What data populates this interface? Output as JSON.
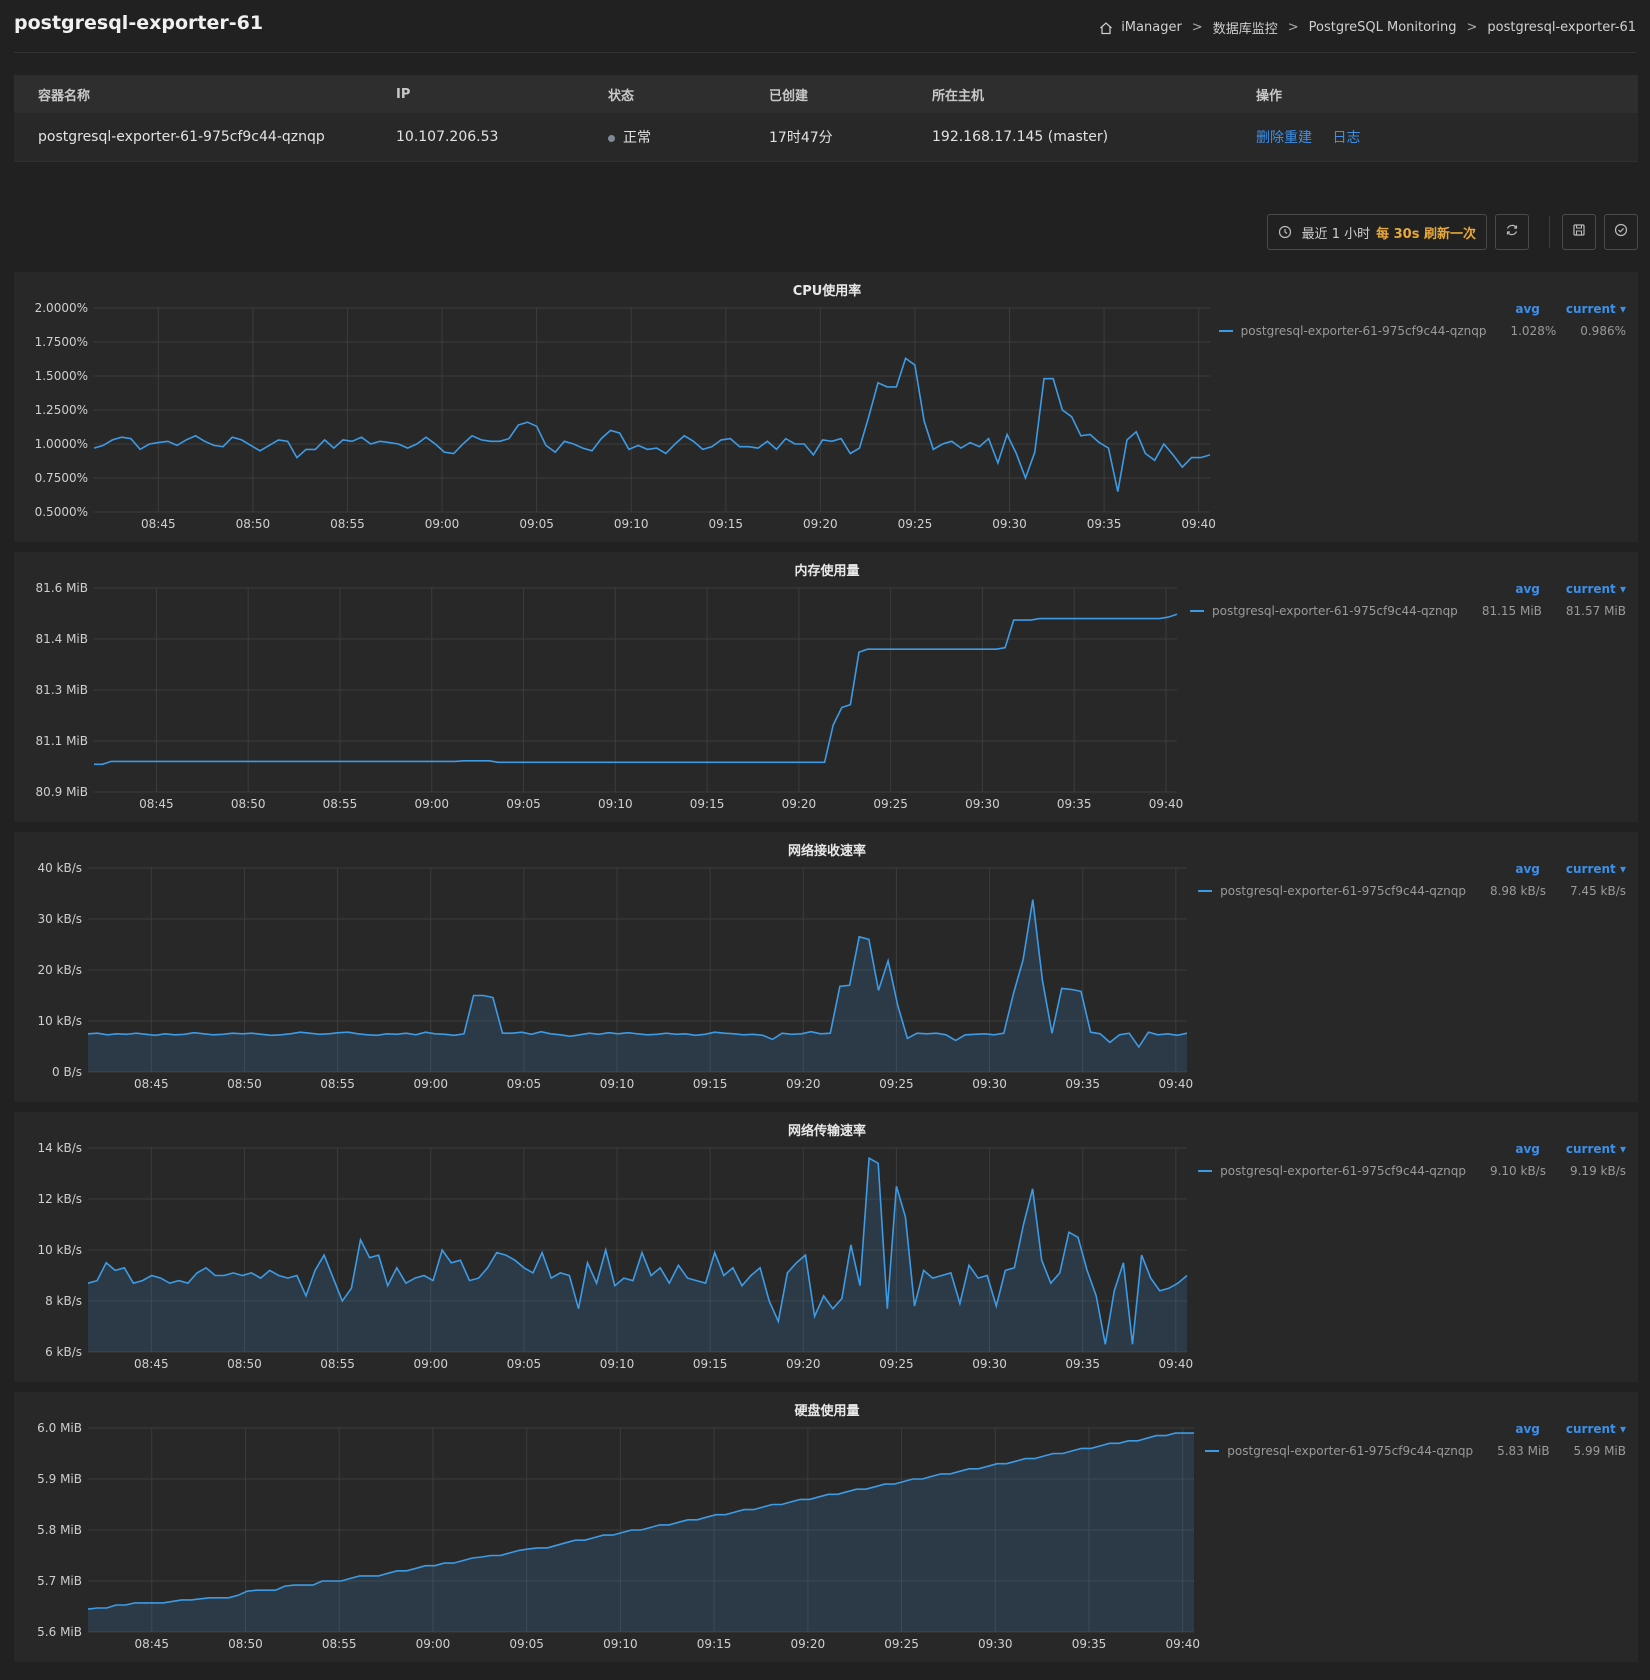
{
  "header": {
    "title": "postgresql-exporter-61",
    "breadcrumb": [
      "iManager",
      "数据库监控",
      "PostgreSQL Monitoring",
      "postgresql-exporter-61"
    ]
  },
  "table": {
    "columns": [
      "容器名称",
      "IP",
      "状态",
      "已创建",
      "所在主机",
      "操作"
    ],
    "row": {
      "name": "postgresql-exporter-61-975cf9c44-qznqp",
      "ip": "10.107.206.53",
      "status": "正常",
      "created": "17时47分",
      "host": "192.168.17.145 (master)",
      "action_rebuild": "删除重建",
      "action_log": "日志"
    }
  },
  "toolbar": {
    "time_range": "最近 1 小时",
    "refresh": "每 30s 刷新一次"
  },
  "colors": {
    "line": "#3d9be6",
    "accent": "#e8a93b",
    "link": "#3d8fe8"
  },
  "legend_headers": {
    "avg": "avg",
    "current": "current ▾"
  },
  "chart_data": [
    {
      "type": "line",
      "title": "CPU使用率",
      "series_name": "postgresql-exporter-61-975cf9c44-qznqp",
      "avg": "1.028%",
      "current": "0.986%",
      "y_ticks": [
        "2.0000%",
        "1.7500%",
        "1.5000%",
        "1.2500%",
        "1.0000%",
        "0.7500%",
        "0.5000%"
      ],
      "ylim": [
        0.5,
        2.0
      ],
      "x_ticks": [
        "08:45",
        "08:50",
        "08:55",
        "09:00",
        "09:05",
        "09:10",
        "09:15",
        "09:20",
        "09:25",
        "09:30",
        "09:35",
        "09:40"
      ],
      "fill": false,
      "values": [
        0.97,
        0.99,
        1.03,
        1.05,
        1.04,
        0.96,
        1.0,
        1.01,
        1.02,
        0.99,
        1.03,
        1.06,
        1.02,
        0.99,
        0.98,
        1.05,
        1.03,
        0.99,
        0.95,
        0.99,
        1.03,
        1.02,
        0.9,
        0.96,
        0.96,
        1.03,
        0.97,
        1.03,
        1.02,
        1.05,
        1.0,
        1.02,
        1.01,
        1.0,
        0.97,
        1.0,
        1.05,
        1.0,
        0.94,
        0.93,
        1.0,
        1.06,
        1.03,
        1.02,
        1.02,
        1.04,
        1.14,
        1.16,
        1.13,
        0.99,
        0.94,
        1.02,
        1.0,
        0.97,
        0.95,
        1.04,
        1.1,
        1.08,
        0.96,
        0.99,
        0.96,
        0.97,
        0.93,
        1.0,
        1.06,
        1.02,
        0.96,
        0.98,
        1.03,
        1.04,
        0.98,
        0.98,
        0.97,
        1.02,
        0.96,
        1.04,
        1.0,
        1.0,
        0.92,
        1.03,
        1.02,
        1.04,
        0.93,
        0.97,
        1.2,
        1.45,
        1.42,
        1.42,
        1.63,
        1.58,
        1.17,
        0.96,
        1.0,
        1.02,
        0.97,
        1.01,
        0.98,
        1.04,
        0.86,
        1.07,
        0.93,
        0.75,
        0.94,
        1.48,
        1.48,
        1.25,
        1.2,
        1.06,
        1.07,
        1.01,
        0.97,
        0.65,
        1.03,
        1.09,
        0.93,
        0.88,
        1.0,
        0.92,
        0.83,
        0.9,
        0.9,
        0.92
      ]
    },
    {
      "type": "line",
      "title": "内存使用量",
      "series_name": "postgresql-exporter-61-975cf9c44-qznqp",
      "avg": "81.15 MiB",
      "current": "81.57 MiB",
      "y_ticks": [
        "81.6 MiB",
        "81.4 MiB",
        "81.3 MiB",
        "81.1 MiB",
        "80.9 MiB"
      ],
      "ylim": [
        80.9,
        81.6
      ],
      "x_ticks": [
        "08:45",
        "08:50",
        "08:55",
        "09:00",
        "09:05",
        "09:10",
        "09:15",
        "09:20",
        "09:25",
        "09:30",
        "09:35",
        "09:40"
      ],
      "fill": false,
      "values": [
        80.995,
        80.995,
        81.005,
        81.005,
        81.005,
        81.005,
        81.005,
        81.005,
        81.005,
        81.005,
        81.005,
        81.005,
        81.005,
        81.005,
        81.005,
        81.005,
        81.005,
        81.005,
        81.005,
        81.005,
        81.005,
        81.005,
        81.005,
        81.005,
        81.005,
        81.005,
        81.005,
        81.005,
        81.005,
        81.005,
        81.005,
        81.005,
        81.005,
        81.005,
        81.005,
        81.005,
        81.005,
        81.005,
        81.005,
        81.005,
        81.005,
        81.005,
        81.005,
        81.007,
        81.007,
        81.007,
        81.007,
        81.002,
        81.002,
        81.002,
        81.002,
        81.002,
        81.002,
        81.002,
        81.002,
        81.002,
        81.002,
        81.002,
        81.002,
        81.002,
        81.002,
        81.002,
        81.002,
        81.002,
        81.002,
        81.002,
        81.002,
        81.002,
        81.002,
        81.002,
        81.002,
        81.002,
        81.002,
        81.002,
        81.002,
        81.002,
        81.002,
        81.002,
        81.002,
        81.002,
        81.002,
        81.002,
        81.002,
        81.002,
        81.002,
        81.002,
        81.13,
        81.19,
        81.2,
        81.38,
        81.39,
        81.39,
        81.39,
        81.39,
        81.39,
        81.39,
        81.39,
        81.39,
        81.39,
        81.39,
        81.39,
        81.39,
        81.39,
        81.39,
        81.39,
        81.39,
        81.395,
        81.49,
        81.49,
        81.49,
        81.495,
        81.495,
        81.495,
        81.495,
        81.495,
        81.495,
        81.495,
        81.495,
        81.495,
        81.495,
        81.495,
        81.495,
        81.495,
        81.495,
        81.495,
        81.5,
        81.51
      ]
    },
    {
      "type": "area",
      "title": "网络接收速率",
      "series_name": "postgresql-exporter-61-975cf9c44-qznqp",
      "avg": "8.98 kB/s",
      "current": "7.45 kB/s",
      "y_ticks": [
        "40 kB/s",
        "30 kB/s",
        "20 kB/s",
        "10 kB/s",
        "0 B/s"
      ],
      "ylim": [
        0,
        40
      ],
      "x_ticks": [
        "08:45",
        "08:50",
        "08:55",
        "09:00",
        "09:05",
        "09:10",
        "09:15",
        "09:20",
        "09:25",
        "09:30",
        "09:35",
        "09:40"
      ],
      "fill": true,
      "values": [
        7.5,
        7.6,
        7.3,
        7.5,
        7.4,
        7.6,
        7.4,
        7.2,
        7.5,
        7.3,
        7.4,
        7.7,
        7.5,
        7.3,
        7.4,
        7.6,
        7.5,
        7.6,
        7.4,
        7.2,
        7.3,
        7.5,
        7.8,
        7.6,
        7.4,
        7.5,
        7.7,
        7.8,
        7.5,
        7.3,
        7.2,
        7.5,
        7.4,
        7.6,
        7.3,
        7.8,
        7.5,
        7.4,
        7.2,
        7.5,
        15.0,
        15.0,
        14.6,
        7.6,
        7.6,
        7.8,
        7.4,
        7.9,
        7.5,
        7.3,
        7.0,
        7.3,
        7.6,
        7.4,
        7.7,
        7.5,
        7.7,
        7.5,
        7.3,
        7.4,
        7.6,
        7.4,
        7.5,
        7.2,
        7.4,
        7.8,
        7.6,
        7.5,
        7.3,
        7.4,
        7.2,
        6.4,
        7.6,
        7.4,
        7.5,
        7.9,
        7.5,
        7.6,
        16.8,
        17.0,
        26.5,
        26.0,
        16.0,
        21.8,
        13.0,
        6.6,
        7.6,
        7.5,
        7.6,
        7.3,
        6.2,
        7.3,
        7.4,
        7.5,
        7.3,
        7.6,
        15.4,
        22.0,
        33.8,
        18.0,
        7.6,
        16.4,
        16.2,
        15.8,
        7.8,
        7.5,
        5.8,
        7.3,
        7.6,
        4.9,
        7.8,
        7.3,
        7.5,
        7.2,
        7.6
      ]
    },
    {
      "type": "area",
      "title": "网络传输速率",
      "series_name": "postgresql-exporter-61-975cf9c44-qznqp",
      "avg": "9.10 kB/s",
      "current": "9.19 kB/s",
      "y_ticks": [
        "14 kB/s",
        "12 kB/s",
        "10 kB/s",
        "8 kB/s",
        "6 kB/s"
      ],
      "ylim": [
        6,
        14
      ],
      "x_ticks": [
        "08:45",
        "08:50",
        "08:55",
        "09:00",
        "09:05",
        "09:10",
        "09:15",
        "09:20",
        "09:25",
        "09:30",
        "09:35",
        "09:40"
      ],
      "fill": true,
      "values": [
        8.7,
        8.8,
        9.5,
        9.2,
        9.3,
        8.7,
        8.8,
        9.0,
        8.9,
        8.7,
        8.8,
        8.7,
        9.1,
        9.3,
        9.0,
        9.0,
        9.1,
        9.0,
        9.1,
        8.9,
        9.2,
        9.0,
        8.9,
        9.0,
        8.2,
        9.2,
        9.8,
        8.9,
        8.0,
        8.5,
        10.4,
        9.7,
        9.8,
        8.6,
        9.3,
        8.7,
        8.9,
        9.0,
        8.8,
        10.0,
        9.5,
        9.6,
        8.8,
        8.9,
        9.3,
        9.9,
        9.8,
        9.6,
        9.3,
        9.1,
        9.9,
        8.9,
        9.1,
        9.0,
        7.7,
        9.5,
        8.7,
        10.0,
        8.6,
        8.9,
        8.8,
        9.9,
        9.0,
        9.3,
        8.7,
        9.4,
        8.9,
        8.8,
        8.7,
        9.9,
        9.0,
        9.3,
        8.6,
        9.0,
        9.3,
        8.0,
        7.2,
        9.1,
        9.5,
        9.8,
        7.4,
        8.2,
        7.7,
        8.1,
        10.2,
        8.6,
        13.6,
        13.4,
        7.7,
        12.5,
        11.3,
        7.8,
        9.2,
        8.9,
        9.0,
        9.1,
        7.9,
        9.4,
        8.9,
        9.0,
        7.8,
        9.2,
        9.3,
        11.0,
        12.4,
        9.6,
        8.7,
        9.1,
        10.7,
        10.5,
        9.2,
        8.2,
        6.3,
        8.4,
        9.5,
        6.3,
        9.8,
        8.9,
        8.4,
        8.5,
        8.7,
        9.0
      ]
    },
    {
      "type": "area",
      "title": "硬盘使用量",
      "series_name": "postgresql-exporter-61-975cf9c44-qznqp",
      "avg": "5.83 MiB",
      "current": "5.99 MiB",
      "y_ticks": [
        "6.0 MiB",
        "5.9 MiB",
        "5.8 MiB",
        "5.7 MiB",
        "5.6 MiB"
      ],
      "ylim": [
        5.6,
        6.0
      ],
      "x_ticks": [
        "08:45",
        "08:50",
        "08:55",
        "09:00",
        "09:05",
        "09:10",
        "09:15",
        "09:20",
        "09:25",
        "09:30",
        "09:35",
        "09:40"
      ],
      "fill": true,
      "values": [
        5.645,
        5.647,
        5.647,
        5.653,
        5.653,
        5.657,
        5.657,
        5.657,
        5.657,
        5.66,
        5.663,
        5.663,
        5.665,
        5.667,
        5.667,
        5.667,
        5.672,
        5.68,
        5.682,
        5.682,
        5.682,
        5.69,
        5.692,
        5.692,
        5.692,
        5.7,
        5.7,
        5.7,
        5.705,
        5.71,
        5.71,
        5.71,
        5.715,
        5.72,
        5.72,
        5.725,
        5.73,
        5.73,
        5.735,
        5.735,
        5.74,
        5.745,
        5.747,
        5.75,
        5.75,
        5.755,
        5.76,
        5.763,
        5.765,
        5.765,
        5.77,
        5.775,
        5.78,
        5.78,
        5.785,
        5.79,
        5.79,
        5.795,
        5.8,
        5.8,
        5.805,
        5.81,
        5.81,
        5.815,
        5.82,
        5.82,
        5.825,
        5.83,
        5.83,
        5.835,
        5.84,
        5.84,
        5.845,
        5.85,
        5.85,
        5.855,
        5.86,
        5.86,
        5.865,
        5.87,
        5.87,
        5.875,
        5.88,
        5.88,
        5.885,
        5.89,
        5.89,
        5.895,
        5.9,
        5.9,
        5.905,
        5.91,
        5.91,
        5.915,
        5.92,
        5.92,
        5.925,
        5.93,
        5.93,
        5.935,
        5.94,
        5.94,
        5.945,
        5.95,
        5.95,
        5.955,
        5.96,
        5.96,
        5.965,
        5.97,
        5.97,
        5.975,
        5.975,
        5.98,
        5.985,
        5.985,
        5.99,
        5.99,
        5.99
      ]
    }
  ]
}
